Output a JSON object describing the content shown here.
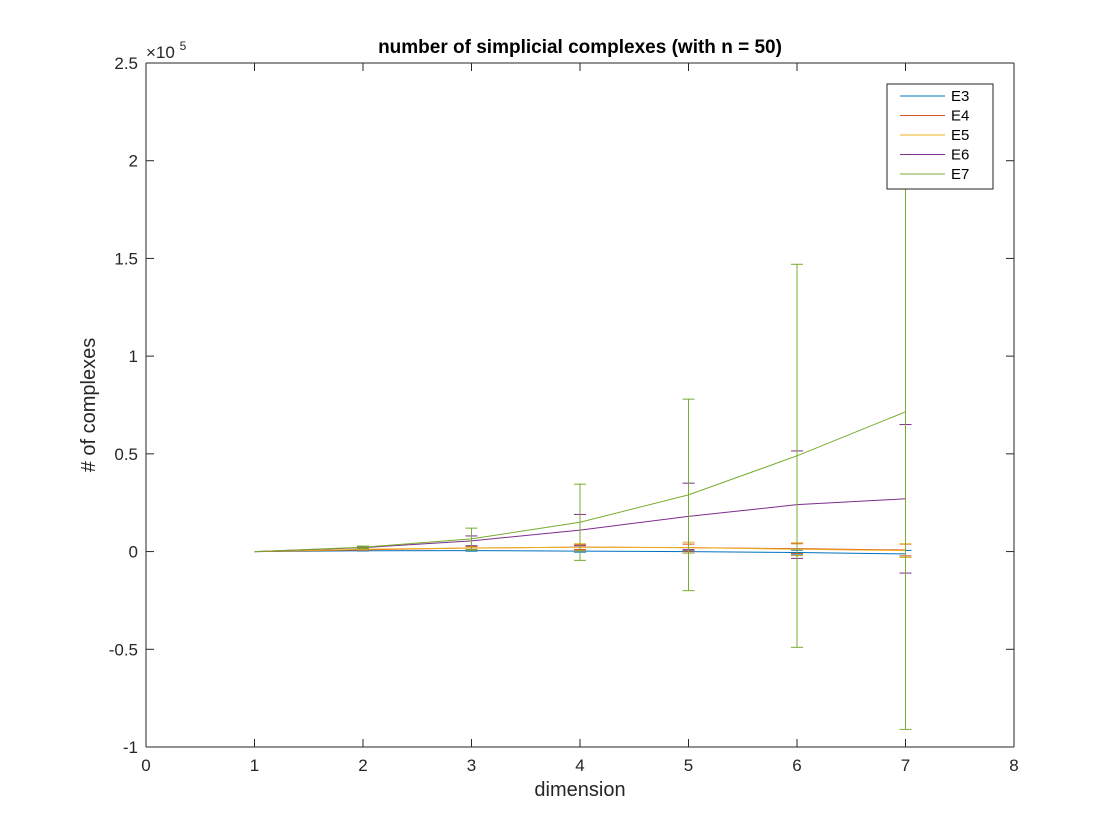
{
  "chart_data": {
    "type": "line",
    "title": "number of simplicial complexes (with n = 50)",
    "xlabel": "dimension",
    "ylabel": "# of complexes",
    "xlim": [
      0,
      8
    ],
    "ylim": [
      -100000,
      250000
    ],
    "y_exponent": {
      "times": "×10",
      "power": "5"
    },
    "xticks": [
      0,
      1,
      2,
      3,
      4,
      5,
      6,
      7,
      8
    ],
    "xtick_labels": [
      "0",
      "1",
      "2",
      "3",
      "4",
      "5",
      "6",
      "7",
      "8"
    ],
    "yticks": [
      -100000,
      -50000,
      0,
      50000,
      100000,
      150000,
      200000,
      250000
    ],
    "ytick_labels": [
      "-1",
      "-0.5",
      "0",
      "0.5",
      "1",
      "1.5",
      "2",
      "2.5"
    ],
    "grid": false,
    "legend_position": "top-right",
    "x": [
      1,
      2,
      3,
      4,
      5,
      6,
      7
    ],
    "series": [
      {
        "name": "E3",
        "color": "#0072BD",
        "values": [
          0,
          400,
          500,
          200,
          0,
          -500,
          -1200
        ],
        "errors": [
          0,
          100,
          300,
          500,
          800,
          1200,
          1800
        ]
      },
      {
        "name": "E4",
        "color": "#D95319",
        "values": [
          0,
          900,
          1800,
          2300,
          2000,
          1500,
          800
        ],
        "errors": [
          0,
          200,
          700,
          1200,
          1800,
          2500,
          3000
        ]
      },
      {
        "name": "E5",
        "color": "#EDB120",
        "values": [
          0,
          1200,
          1800,
          2200,
          2000,
          1200,
          500
        ],
        "errors": [
          0,
          300,
          1000,
          1800,
          2800,
          3300,
          3500
        ]
      },
      {
        "name": "E6",
        "color": "#7E2F8E",
        "values": [
          0,
          2000,
          5500,
          11000,
          18000,
          24000,
          27000
        ],
        "errors": [
          0,
          500,
          2500,
          8000,
          17000,
          27500,
          38000
        ]
      },
      {
        "name": "E7",
        "color": "#77AC30",
        "values": [
          0,
          2200,
          6500,
          15000,
          29000,
          49000,
          71500
        ],
        "errors": [
          0,
          600,
          5500,
          19500,
          49000,
          98000,
          162500
        ]
      }
    ]
  }
}
